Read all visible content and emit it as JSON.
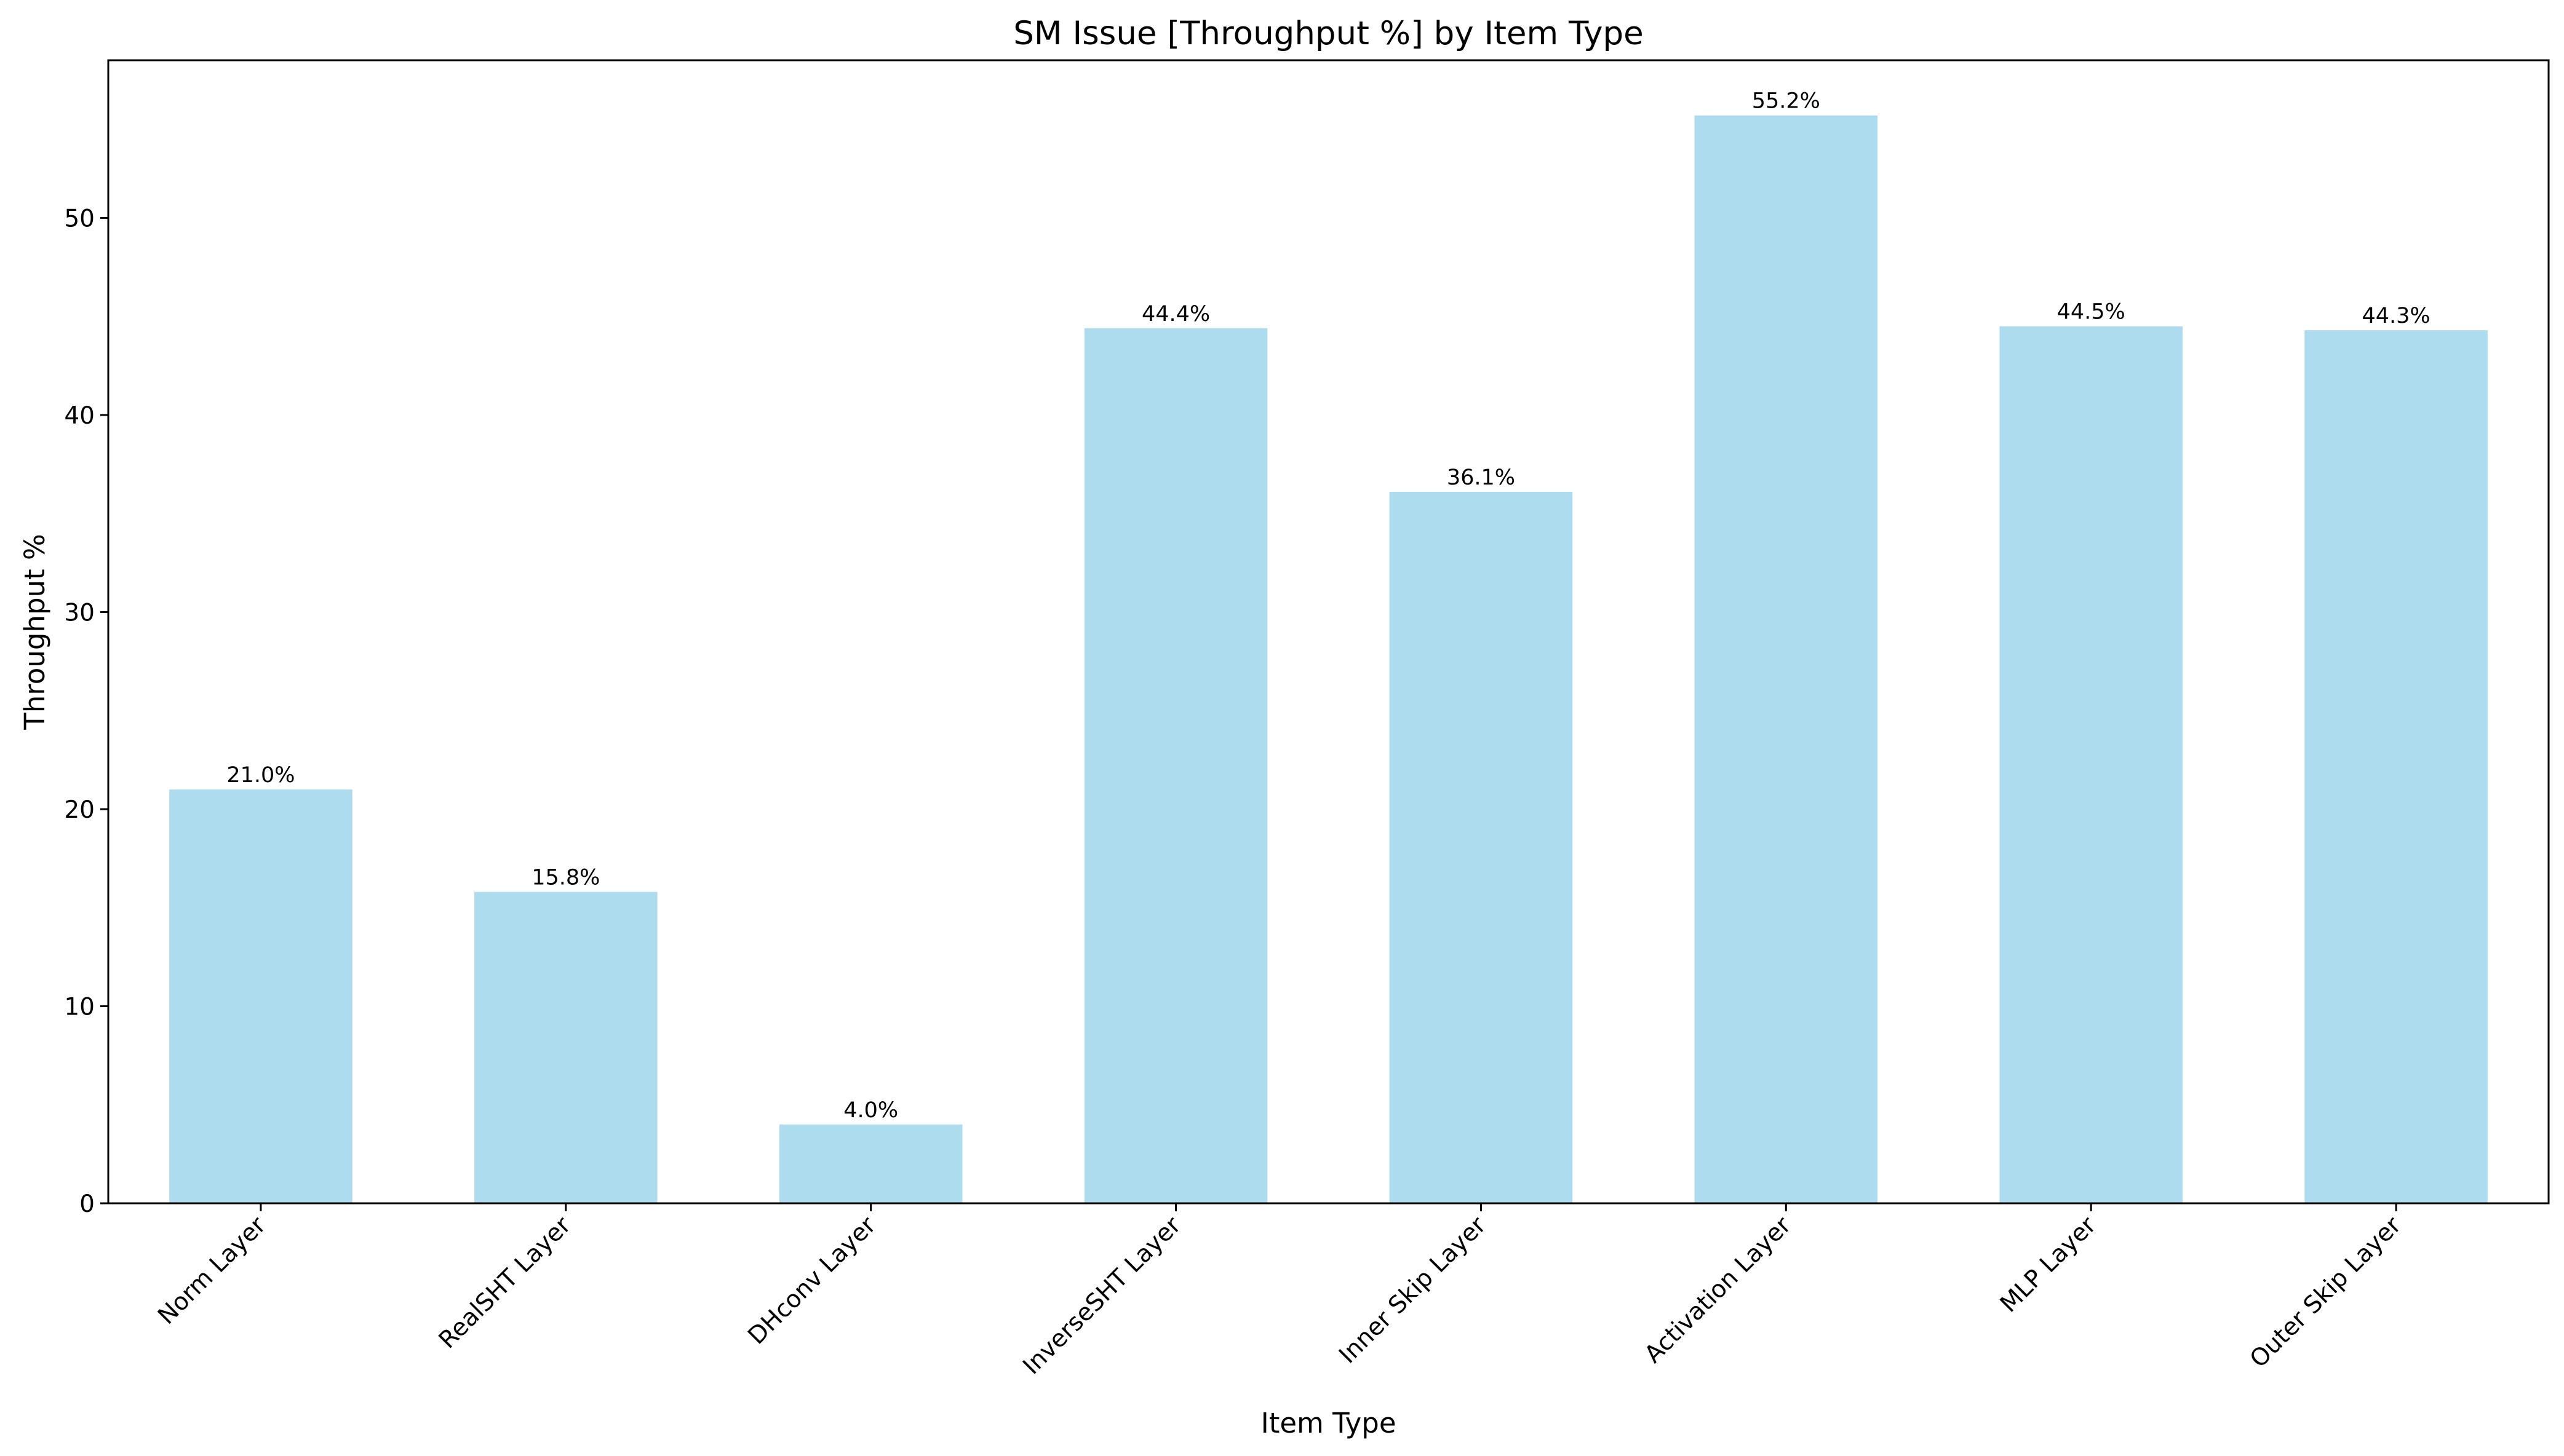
{
  "chart_data": {
    "type": "bar",
    "title": "SM Issue [Throughput %] by Item Type",
    "xlabel": "Item Type",
    "ylabel": "Throughput %",
    "categories": [
      "Norm Layer",
      "RealSHT Layer",
      "DHconv Layer",
      "InverseSHT Layer",
      "Inner Skip Layer",
      "Activation Layer",
      "MLP Layer",
      "Outer Skip Layer"
    ],
    "values": [
      21.0,
      15.8,
      4.0,
      44.4,
      36.1,
      55.2,
      44.5,
      44.3
    ],
    "data_labels": [
      "21.0%",
      "15.8%",
      "4.0%",
      "44.4%",
      "36.1%",
      "55.2%",
      "44.5%",
      "44.3%"
    ],
    "ylim": [
      0,
      58
    ],
    "yticks": [
      0,
      10,
      20,
      30,
      40,
      50
    ],
    "grid": false,
    "bar_color": "#ADDCEE"
  }
}
